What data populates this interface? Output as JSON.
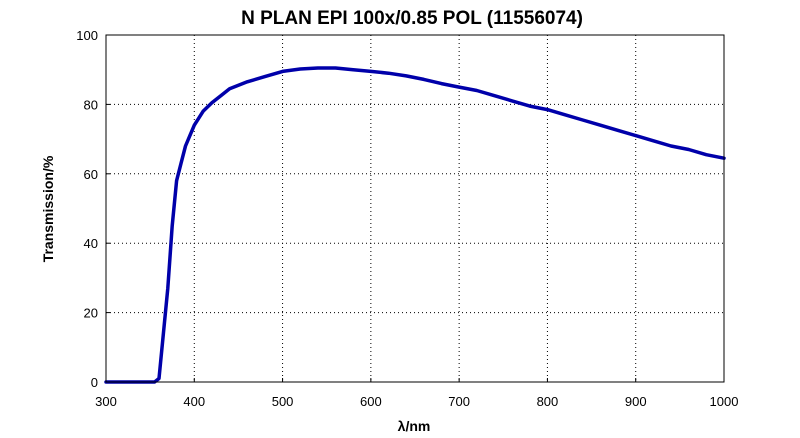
{
  "chart_data": {
    "type": "line",
    "title": "N PLAN EPI 100x/0.85 POL (11556074)",
    "xlabel": "λ/nm",
    "ylabel": "Transmission/%",
    "xlim": [
      300,
      1000
    ],
    "ylim": [
      0,
      100
    ],
    "x_ticks": [
      300,
      400,
      500,
      600,
      700,
      800,
      900,
      1000
    ],
    "y_ticks": [
      0,
      20,
      40,
      60,
      80,
      100
    ],
    "x_tick_labels": [
      "300",
      "400",
      "500",
      "600",
      "700",
      "800",
      "900",
      "1000"
    ],
    "y_tick_labels": [
      "0",
      "20",
      "40",
      "60",
      "80",
      "100"
    ],
    "grid": true,
    "legend": "none",
    "line_color": "#0000aa",
    "series": [
      {
        "x": [
          300,
          340,
          355,
          360,
          365,
          370,
          375,
          380,
          385,
          390,
          395,
          400,
          410,
          420,
          430,
          440,
          460,
          480,
          500,
          520,
          540,
          560,
          580,
          600,
          620,
          640,
          660,
          680,
          700,
          720,
          740,
          760,
          780,
          800,
          820,
          840,
          860,
          880,
          900,
          920,
          940,
          960,
          980,
          1000
        ],
        "y": [
          0,
          0,
          0,
          1,
          14,
          27,
          45,
          58,
          63,
          68,
          71,
          74,
          78,
          80.5,
          82.5,
          84.5,
          86.5,
          88,
          89.5,
          90.2,
          90.5,
          90.5,
          90,
          89.5,
          89,
          88.2,
          87.2,
          86,
          85,
          84,
          82.5,
          81,
          79.5,
          78.5,
          77,
          75.5,
          74,
          72.5,
          71,
          69.5,
          68,
          67,
          65.5,
          64.5
        ]
      }
    ]
  }
}
